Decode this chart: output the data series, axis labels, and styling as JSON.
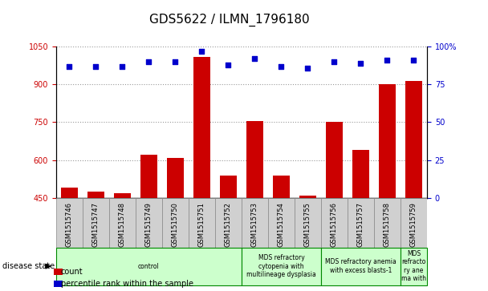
{
  "title": "GDS5622 / ILMN_1796180",
  "samples": [
    "GSM1515746",
    "GSM1515747",
    "GSM1515748",
    "GSM1515749",
    "GSM1515750",
    "GSM1515751",
    "GSM1515752",
    "GSM1515753",
    "GSM1515754",
    "GSM1515755",
    "GSM1515756",
    "GSM1515757",
    "GSM1515758",
    "GSM1515759"
  ],
  "counts": [
    490,
    475,
    470,
    620,
    610,
    1010,
    540,
    755,
    540,
    460,
    750,
    640,
    900,
    915
  ],
  "percentile_ranks": [
    87,
    87,
    87,
    90,
    90,
    97,
    88,
    92,
    87,
    86,
    90,
    89,
    91,
    91
  ],
  "ylim_left": [
    450,
    1050
  ],
  "ylim_right": [
    0,
    100
  ],
  "yticks_left": [
    450,
    600,
    750,
    900,
    1050
  ],
  "yticks_right": [
    0,
    25,
    50,
    75,
    100
  ],
  "bar_color": "#cc0000",
  "dot_color": "#0000cc",
  "background_color": "#ffffff",
  "grid_color": "#999999",
  "disease_groups": [
    {
      "label": "control",
      "start": 0,
      "end": 7
    },
    {
      "label": "MDS refractory\ncytopenia with\nmultilineage dysplasia",
      "start": 7,
      "end": 10
    },
    {
      "label": "MDS refractory anemia\nwith excess blasts-1",
      "start": 10,
      "end": 13
    },
    {
      "label": "MDS\nrefracto\nry ane\nma with",
      "start": 13,
      "end": 14
    }
  ],
  "disease_box_color": "#ccffcc",
  "disease_box_edge": "#008800",
  "tick_bg_color": "#d0d0d0",
  "title_fontsize": 11,
  "tick_fontsize": 7,
  "bar_width": 0.65
}
